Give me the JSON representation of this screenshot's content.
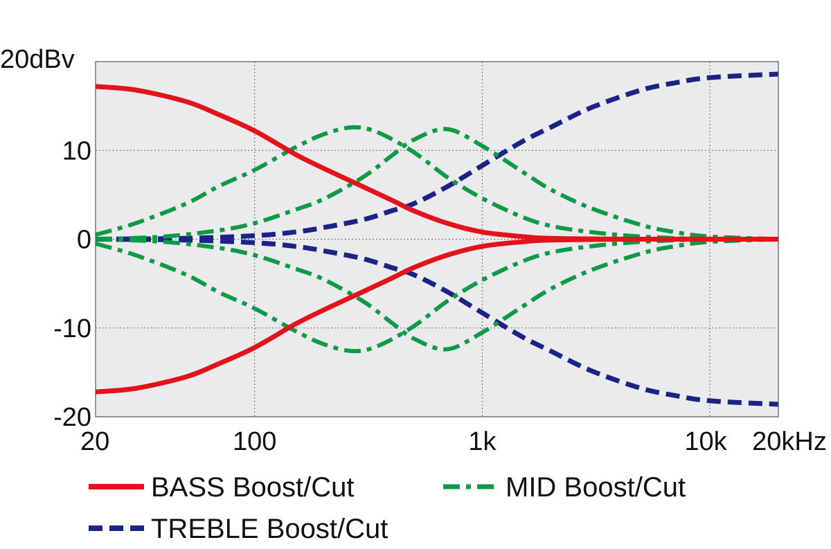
{
  "chart_data": {
    "type": "line",
    "x_scale": "log",
    "xlim": [
      20,
      20000
    ],
    "ylim": [
      -20,
      20
    ],
    "grid": true,
    "legend_position": "bottom",
    "x_ticks": [
      {
        "value": 20,
        "label": "20"
      },
      {
        "value": 100,
        "label": "100"
      },
      {
        "value": 1000,
        "label": "1k"
      },
      {
        "value": 10000,
        "label": "10k"
      },
      {
        "value": 20000,
        "label": "20kHz"
      }
    ],
    "y_ticks": [
      {
        "value": 20,
        "label": "20dBv"
      },
      {
        "value": 10,
        "label": "10"
      },
      {
        "value": 0,
        "label": "0"
      },
      {
        "value": -10,
        "label": "-10"
      },
      {
        "value": -20,
        "label": "-20"
      }
    ],
    "series": [
      {
        "group": "bass",
        "style": "solid",
        "color": "#e3131b",
        "x": [
          20,
          30,
          50,
          70,
          100,
          150,
          200,
          300,
          400,
          500,
          700,
          1000,
          1500,
          2000,
          5000,
          20000
        ],
        "y": [
          17.2,
          16.8,
          15.5,
          14.0,
          12.2,
          9.6,
          8.0,
          5.9,
          4.4,
          3.2,
          1.8,
          0.8,
          0.3,
          0.1,
          0,
          0
        ]
      },
      {
        "group": "bass",
        "style": "solid",
        "color": "#e3131b",
        "x": [
          20,
          30,
          50,
          70,
          100,
          150,
          200,
          300,
          400,
          500,
          700,
          1000,
          1500,
          2000,
          5000,
          20000
        ],
        "y": [
          -17.2,
          -16.8,
          -15.5,
          -14.0,
          -12.2,
          -9.6,
          -8.0,
          -5.9,
          -4.4,
          -3.2,
          -1.8,
          -0.8,
          -0.3,
          -0.1,
          0,
          0
        ]
      },
      {
        "group": "mid",
        "style": "dashdot",
        "color": "#0f9a48",
        "x": [
          20,
          30,
          50,
          70,
          100,
          150,
          200,
          270,
          350,
          500,
          700,
          1000,
          1500,
          2000,
          3000,
          5000,
          10000,
          20000
        ],
        "y": [
          0.5,
          1.8,
          4.0,
          6.0,
          7.8,
          10.3,
          11.8,
          12.6,
          12.0,
          9.8,
          7.0,
          4.6,
          2.5,
          1.5,
          0.8,
          0.3,
          0,
          0
        ]
      },
      {
        "group": "mid",
        "style": "dashdot",
        "color": "#0f9a48",
        "x": [
          20,
          30,
          50,
          70,
          100,
          150,
          200,
          270,
          350,
          500,
          700,
          1000,
          1500,
          2000,
          3000,
          5000,
          10000,
          20000
        ],
        "y": [
          -0.5,
          -1.8,
          -4.0,
          -6.0,
          -7.8,
          -10.3,
          -11.8,
          -12.6,
          -12.0,
          -9.8,
          -7.0,
          -4.6,
          -2.5,
          -1.5,
          -0.8,
          -0.3,
          0,
          0
        ]
      },
      {
        "group": "mid",
        "style": "dashdot",
        "color": "#0f9a48",
        "x": [
          20,
          40,
          70,
          100,
          150,
          200,
          300,
          400,
          500,
          700,
          1000,
          1500,
          2000,
          3000,
          5000,
          7000,
          10000,
          20000
        ],
        "y": [
          0,
          0.3,
          1.0,
          1.8,
          3.3,
          4.5,
          7.0,
          9.4,
          11.2,
          12.4,
          10.5,
          7.6,
          5.6,
          3.5,
          1.6,
          0.8,
          0.3,
          0
        ]
      },
      {
        "group": "mid",
        "style": "dashdot",
        "color": "#0f9a48",
        "x": [
          20,
          40,
          70,
          100,
          150,
          200,
          300,
          400,
          500,
          700,
          1000,
          1500,
          2000,
          3000,
          5000,
          7000,
          10000,
          20000
        ],
        "y": [
          0,
          -0.3,
          -1.0,
          -1.8,
          -3.3,
          -4.5,
          -7.0,
          -9.4,
          -11.2,
          -12.4,
          -10.5,
          -7.6,
          -5.6,
          -3.5,
          -1.6,
          -0.8,
          -0.3,
          0
        ]
      },
      {
        "group": "treble",
        "style": "dashed",
        "color": "#1b2484",
        "x": [
          20,
          50,
          100,
          150,
          200,
          300,
          400,
          500,
          700,
          1000,
          1500,
          2000,
          3000,
          5000,
          7000,
          10000,
          20000
        ],
        "y": [
          0,
          0.1,
          0.4,
          0.8,
          1.3,
          2.2,
          3.2,
          4.0,
          5.9,
          8.3,
          11.0,
          12.6,
          14.8,
          16.8,
          17.6,
          18.2,
          18.6
        ]
      },
      {
        "group": "treble",
        "style": "dashed",
        "color": "#1b2484",
        "x": [
          20,
          50,
          100,
          150,
          200,
          300,
          400,
          500,
          700,
          1000,
          1500,
          2000,
          3000,
          5000,
          7000,
          10000,
          20000
        ],
        "y": [
          0,
          -0.1,
          -0.4,
          -0.8,
          -1.3,
          -2.2,
          -3.2,
          -4.0,
          -5.9,
          -8.3,
          -11.0,
          -12.6,
          -14.8,
          -16.8,
          -17.6,
          -18.2,
          -18.6
        ]
      }
    ],
    "legend": [
      {
        "group": "bass",
        "label": "BASS Boost/Cut",
        "style": "solid",
        "color": "#e3131b"
      },
      {
        "group": "mid",
        "label": "MID Boost/Cut",
        "style": "dashdot",
        "color": "#0f9a48"
      },
      {
        "group": "treble",
        "label": "TREBLE Boost/Cut",
        "style": "dashed",
        "color": "#1b2484"
      }
    ]
  }
}
